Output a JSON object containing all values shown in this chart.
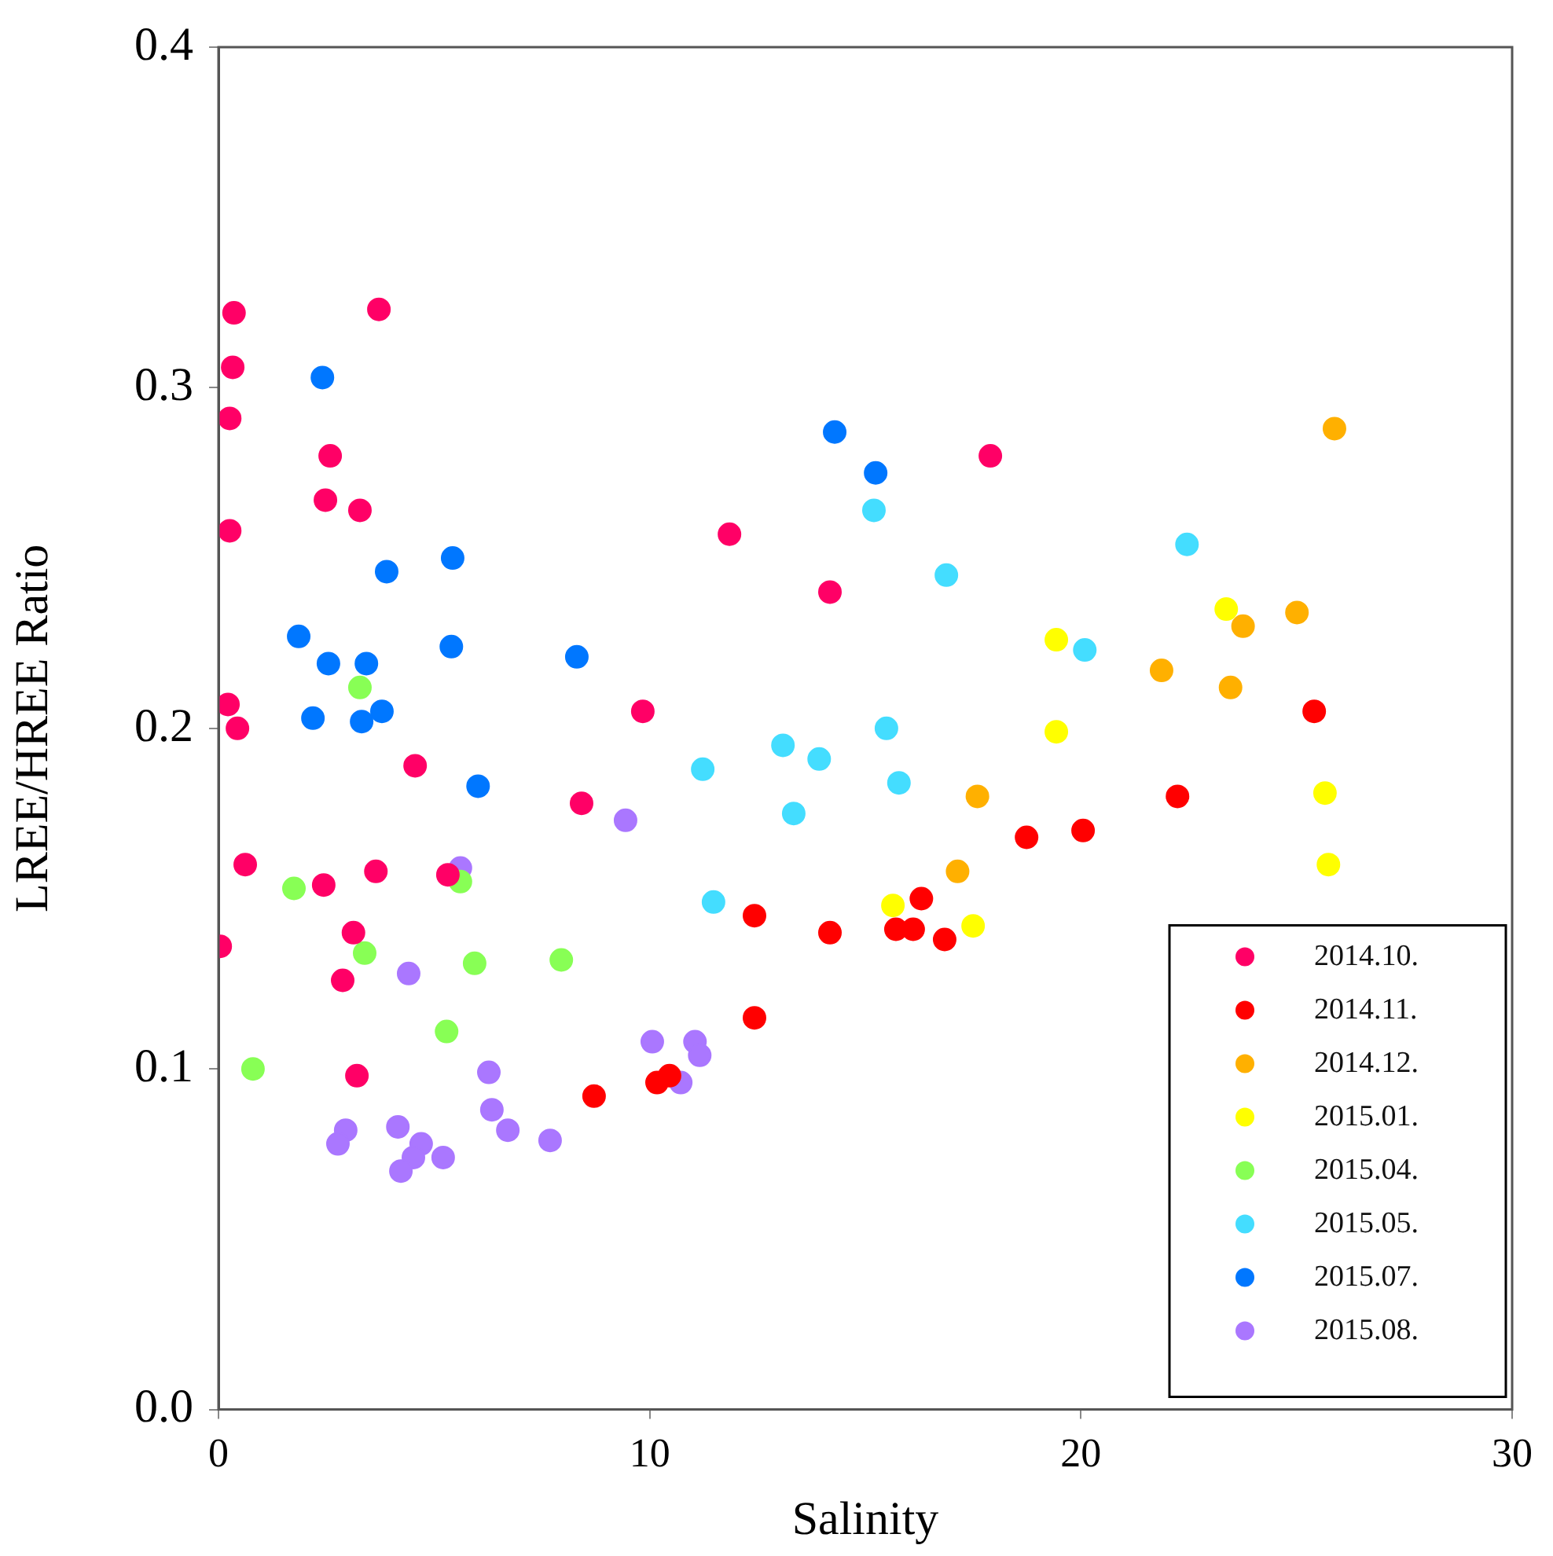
{
  "chart_data": {
    "type": "scatter",
    "xlabel": "Salinity",
    "ylabel": "LREE/HREE Ratio",
    "xlim": [
      0,
      30
    ],
    "xticks": [
      0,
      10,
      20,
      30
    ],
    "ylim": [
      0,
      0.4
    ],
    "yticks": [
      {
        "value": 0,
        "label": "0.0"
      },
      {
        "value": 0.1,
        "label": "0.1"
      },
      {
        "value": 0.2,
        "label": "0.2"
      },
      {
        "value": 0.3,
        "label": "0.3"
      },
      {
        "value": 0.4,
        "label": "0.4"
      }
    ],
    "grid": false,
    "legend": "bottom right",
    "marker": "circle",
    "series": [
      {
        "name": "2014.10.",
        "color": "#ff0066",
        "x": [
          0.36,
          0.33,
          0.26,
          0.26,
          0.22,
          0.44,
          0.62,
          0.04,
          3.72,
          2.59,
          2.48,
          3.28,
          4.56,
          2.44,
          3.65,
          3.13,
          2.88,
          3.21,
          5.32,
          11.85,
          14.18,
          17.9,
          9.84,
          8.42
        ],
        "values": [
          0.322,
          0.306,
          0.291,
          0.258,
          0.207,
          0.2,
          0.16,
          0.136,
          0.323,
          0.28,
          0.267,
          0.264,
          0.189,
          0.154,
          0.158,
          0.14,
          0.126,
          0.098,
          0.157,
          0.257,
          0.24,
          0.28,
          0.205,
          0.178
        ]
      },
      {
        "name": "2014.11.",
        "color": "#ff0000",
        "x": [
          12.43,
          12.43,
          8.71,
          10.17,
          10.46,
          14.18,
          15.71,
          16.11,
          16.3,
          16.84,
          18.74,
          20.05,
          22.24,
          25.41
        ],
        "values": [
          0.145,
          0.115,
          0.092,
          0.096,
          0.098,
          0.14,
          0.141,
          0.141,
          0.15,
          0.138,
          0.168,
          0.17,
          0.18,
          0.205
        ]
      },
      {
        "name": "2014.12.",
        "color": "#ffb000",
        "x": [
          17.6,
          17.14,
          21.87,
          23.47,
          23.76,
          25.01,
          25.88
        ],
        "values": [
          0.18,
          0.158,
          0.217,
          0.212,
          0.23,
          0.234,
          0.288
        ]
      },
      {
        "name": "2015.01.",
        "color": "#ffff00",
        "x": [
          15.64,
          17.5,
          19.43,
          19.43,
          23.37,
          25.66,
          25.74
        ],
        "values": [
          0.148,
          0.142,
          0.226,
          0.199,
          0.235,
          0.181,
          0.16
        ]
      },
      {
        "name": "2015.04.",
        "color": "#88ff55",
        "x": [
          0.8,
          1.75,
          3.28,
          3.39,
          5.61,
          5.29,
          5.94,
          7.95
        ],
        "values": [
          0.1,
          0.153,
          0.212,
          0.134,
          0.155,
          0.111,
          0.131,
          0.132
        ]
      },
      {
        "name": "2015.05.",
        "color": "#44ddff",
        "x": [
          15.2,
          16.88,
          22.46,
          20.09,
          15.49,
          15.78,
          13.09,
          13.93,
          13.34,
          11.23,
          11.48
        ],
        "values": [
          0.264,
          0.245,
          0.254,
          0.223,
          0.2,
          0.184,
          0.195,
          0.191,
          0.175,
          0.188,
          0.149
        ]
      },
      {
        "name": "2015.07.",
        "color": "#0077ff",
        "x": [
          2.41,
          1.86,
          2.55,
          2.19,
          3.43,
          3.32,
          3.79,
          3.9,
          5.43,
          5.4,
          6.02,
          8.31,
          14.29,
          15.24
        ],
        "values": [
          0.303,
          0.227,
          0.219,
          0.203,
          0.219,
          0.202,
          0.205,
          0.246,
          0.25,
          0.224,
          0.183,
          0.221,
          0.287,
          0.275
        ]
      },
      {
        "name": "2015.08.",
        "color": "#aa77ff",
        "x": [
          5.61,
          4.41,
          6.27,
          6.34,
          6.71,
          7.69,
          5.21,
          4.16,
          2.95,
          2.77,
          4.7,
          4.52,
          4.23,
          9.44,
          10.06,
          11.05,
          11.16,
          10.72
        ],
        "values": [
          0.159,
          0.128,
          0.099,
          0.088,
          0.082,
          0.079,
          0.074,
          0.083,
          0.082,
          0.078,
          0.078,
          0.074,
          0.07,
          0.173,
          0.108,
          0.108,
          0.104,
          0.096
        ]
      }
    ]
  }
}
